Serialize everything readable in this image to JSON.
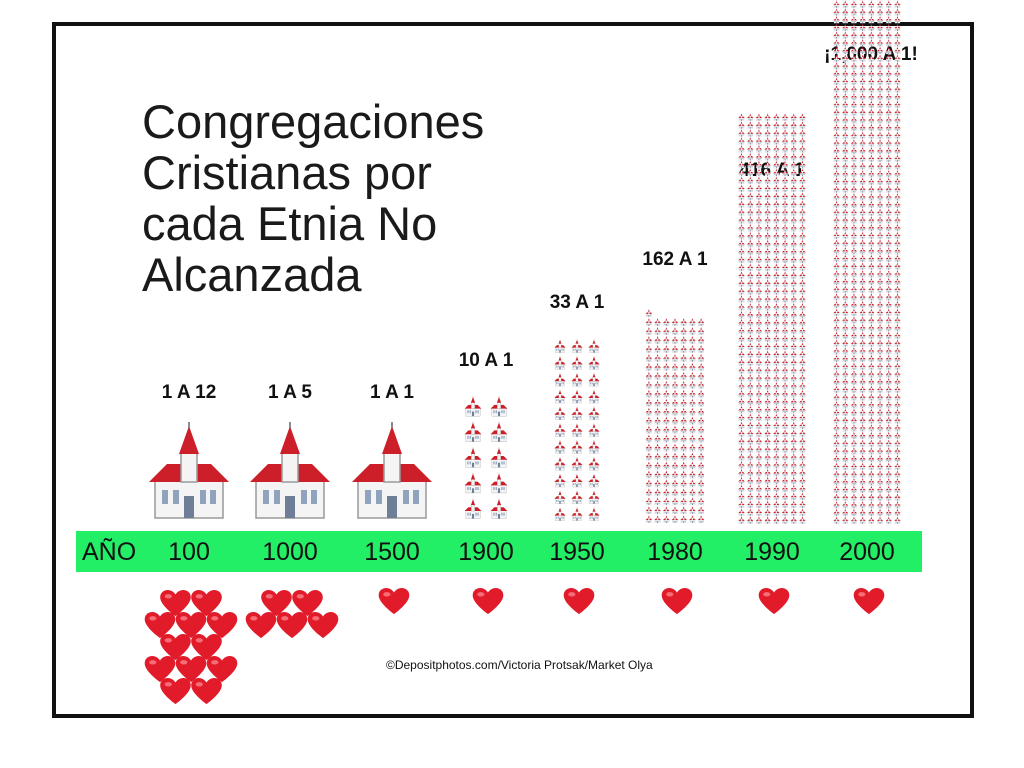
{
  "title_lines": [
    "Congregaciones",
    "Cristianas por",
    "cada Etnia No",
    "Alcanzada"
  ],
  "credit": "©Depositphotos.com/Victoria Protsak/Market Olya",
  "timeline_label": "AÑO",
  "colors": {
    "timeline": "#22ee66",
    "church_roof": "#cc1f2a",
    "heart": "#e21b2a",
    "frame": "#111111"
  },
  "chart_data": {
    "type": "bar",
    "categories": [
      "100",
      "1000",
      "1500",
      "1900",
      "1950",
      "1980",
      "1990",
      "2000"
    ],
    "ratio_labels": [
      "1 A 12",
      "1 A 5",
      "1 A 1",
      "10 A 1",
      "33 A 1",
      "162 A 1",
      "416 A 1",
      "¡1,000 A 1!"
    ],
    "series": [
      {
        "values": [
          1,
          1,
          1,
          10,
          33,
          162,
          416,
          1000
        ]
      },
      {
        "values": [
          12,
          5,
          1,
          1,
          1,
          1,
          1,
          1
        ]
      }
    ]
  }
}
